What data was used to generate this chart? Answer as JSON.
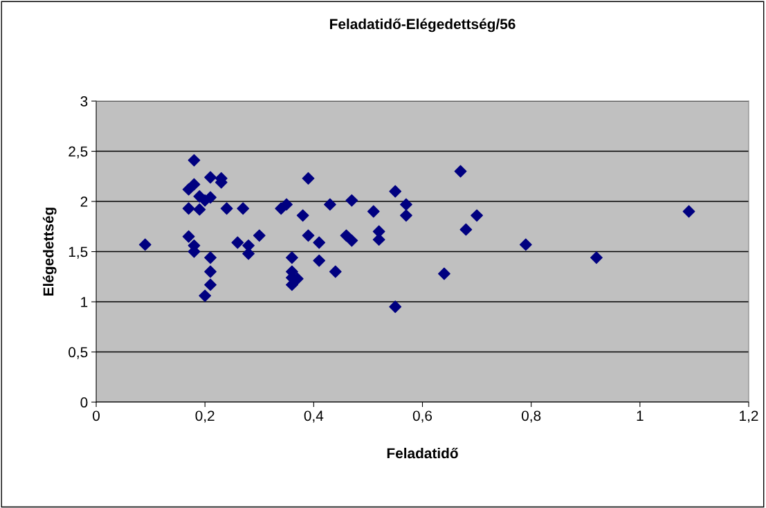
{
  "chart_data": {
    "type": "scatter",
    "title": "Feladatidő-Elégedettség/56",
    "xlabel": "Feladatidő",
    "ylabel": "Elégedettség",
    "x": [
      0.18,
      0.21,
      0.23,
      0.23,
      0.18,
      0.17,
      0.19,
      0.2,
      0.21,
      0.17,
      0.19,
      0.24,
      0.27,
      0.17,
      0.09,
      0.18,
      0.18,
      0.21,
      0.21,
      0.21,
      0.2,
      0.26,
      0.28,
      0.28,
      0.3,
      0.39,
      0.34,
      0.35,
      0.38,
      0.43,
      0.47,
      0.51,
      0.55,
      0.57,
      0.57,
      0.39,
      0.41,
      0.46,
      0.47,
      0.52,
      0.52,
      0.36,
      0.41,
      0.44,
      0.36,
      0.36,
      0.37,
      0.36,
      0.55,
      0.67,
      0.7,
      0.68,
      0.79,
      0.64,
      0.92,
      1.09
    ],
    "series": [
      {
        "color": "#000080",
        "values": [
          2.41,
          2.24,
          2.23,
          2.19,
          2.17,
          2.12,
          2.05,
          2.01,
          2.04,
          1.93,
          1.92,
          1.93,
          1.93,
          1.65,
          1.57,
          1.56,
          1.5,
          1.44,
          1.3,
          1.17,
          1.06,
          1.59,
          1.56,
          1.48,
          1.66,
          2.23,
          1.93,
          1.97,
          1.86,
          1.97,
          2.01,
          1.9,
          2.1,
          1.97,
          1.86,
          1.66,
          1.59,
          1.66,
          1.61,
          1.7,
          1.62,
          1.44,
          1.41,
          1.3,
          1.3,
          1.24,
          1.23,
          1.17,
          0.95,
          2.3,
          1.86,
          1.72,
          1.57,
          1.28,
          1.44,
          1.9
        ]
      }
    ],
    "xlim": [
      0,
      1.2
    ],
    "xticks": [
      {
        "value": 0,
        "label": "0"
      },
      {
        "value": 0.2,
        "label": "0,2"
      },
      {
        "value": 0.4,
        "label": "0,4"
      },
      {
        "value": 0.6,
        "label": "0,6"
      },
      {
        "value": 0.8,
        "label": "0,8"
      },
      {
        "value": 1,
        "label": "1"
      },
      {
        "value": 1.2,
        "label": "1,2"
      }
    ],
    "ylim": [
      0,
      3
    ],
    "yticks": [
      {
        "value": 0,
        "label": "0"
      },
      {
        "value": 0.5,
        "label": "0,5"
      },
      {
        "value": 1,
        "label": "1"
      },
      {
        "value": 1.5,
        "label": "1,5"
      },
      {
        "value": 2,
        "label": "2"
      },
      {
        "value": 2.5,
        "label": "2,5"
      },
      {
        "value": 3,
        "label": "3"
      }
    ],
    "grid": "y",
    "marker": "diamond",
    "legend": false
  }
}
